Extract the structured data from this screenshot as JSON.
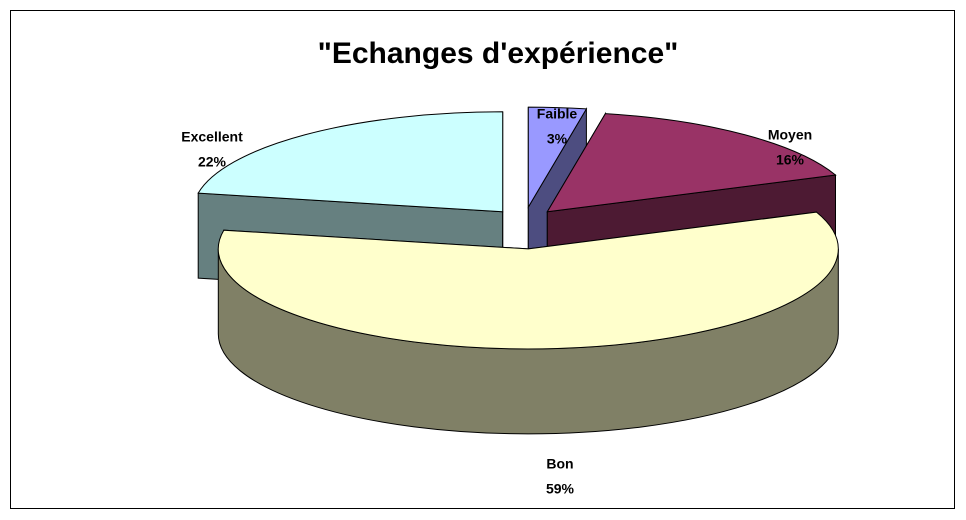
{
  "chart_data": {
    "type": "pie",
    "title": "\"Echanges d'expérience\"",
    "categories": [
      "Faible",
      "Moyen",
      "Bon",
      "Excellent"
    ],
    "values": [
      3,
      16,
      59,
      22
    ],
    "value_labels": [
      "3%",
      "16%",
      "59%",
      "22%"
    ],
    "colors": [
      "#9999ff",
      "#993366",
      "#ffffcc",
      "#ccffff"
    ]
  }
}
